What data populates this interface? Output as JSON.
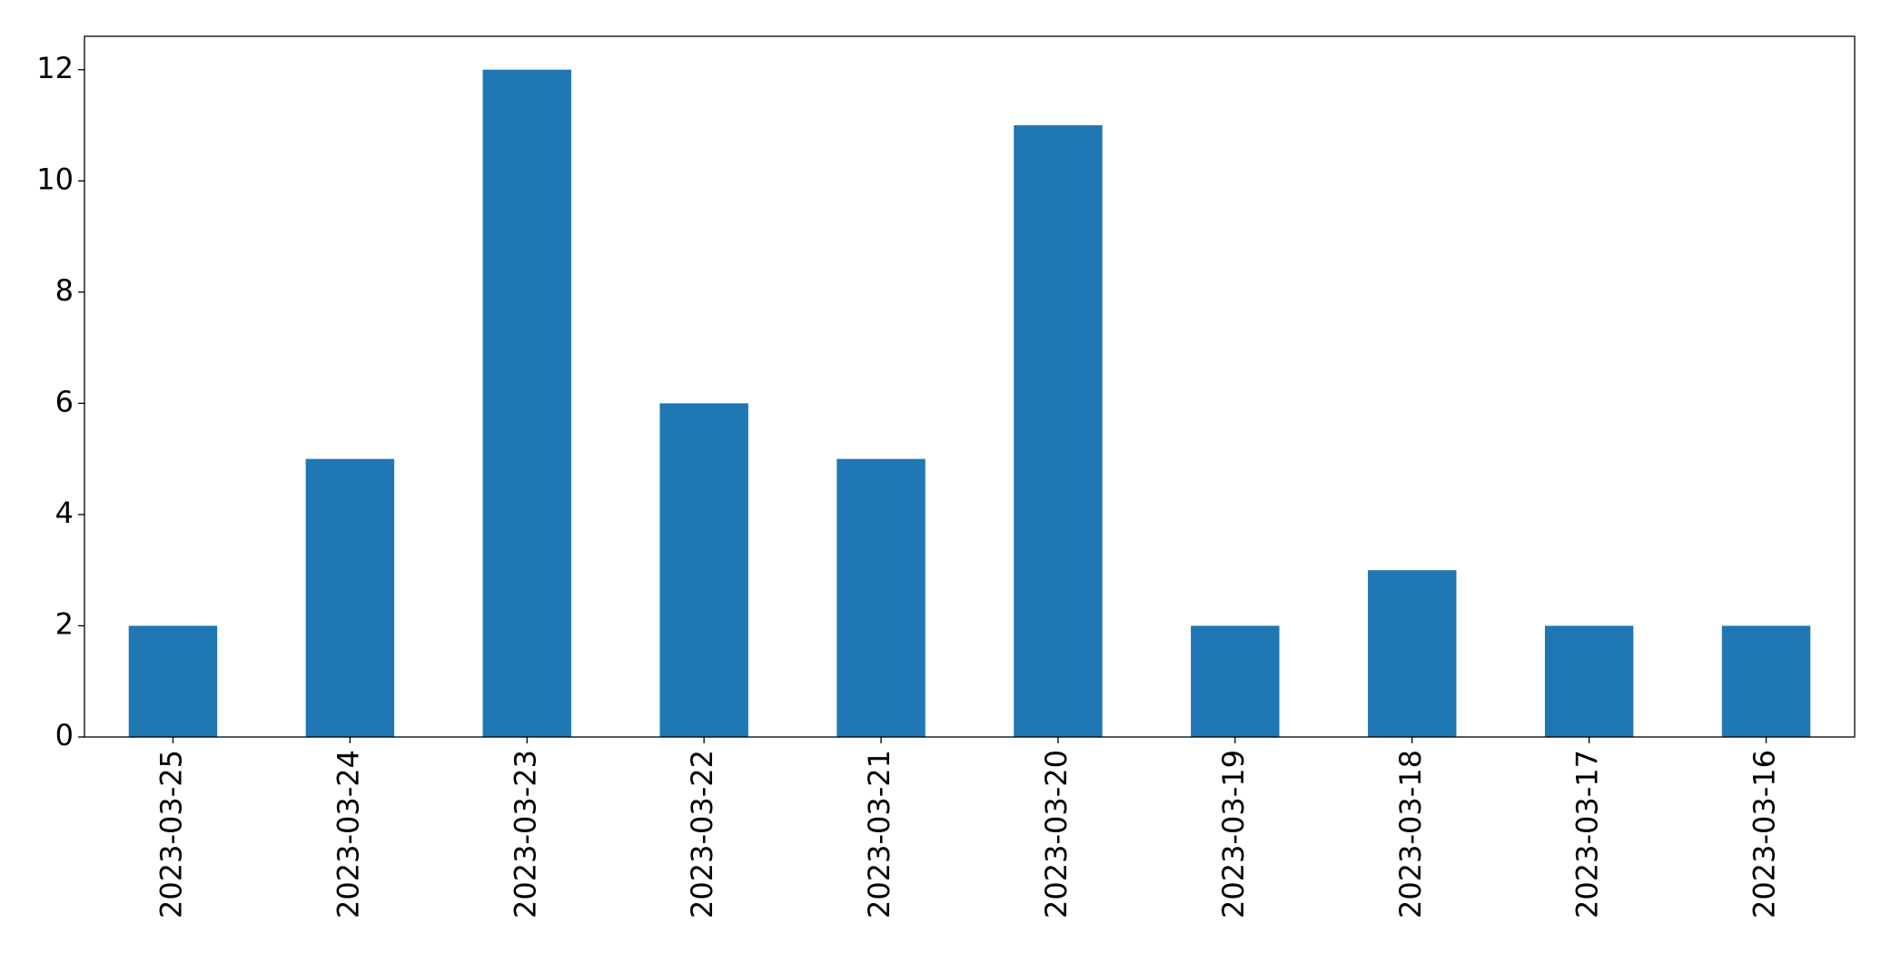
{
  "chart_data": {
    "type": "bar",
    "categories": [
      "2023-03-25",
      "2023-03-24",
      "2023-03-23",
      "2023-03-22",
      "2023-03-21",
      "2023-03-20",
      "2023-03-19",
      "2023-03-18",
      "2023-03-17",
      "2023-03-16"
    ],
    "values": [
      2,
      5,
      12,
      6,
      5,
      11,
      2,
      3,
      2,
      2
    ],
    "color": "#1f77b4",
    "ylim": [
      0,
      12.6
    ],
    "yticks": [
      0,
      2,
      4,
      6,
      8,
      10,
      12
    ],
    "grid": false
  }
}
